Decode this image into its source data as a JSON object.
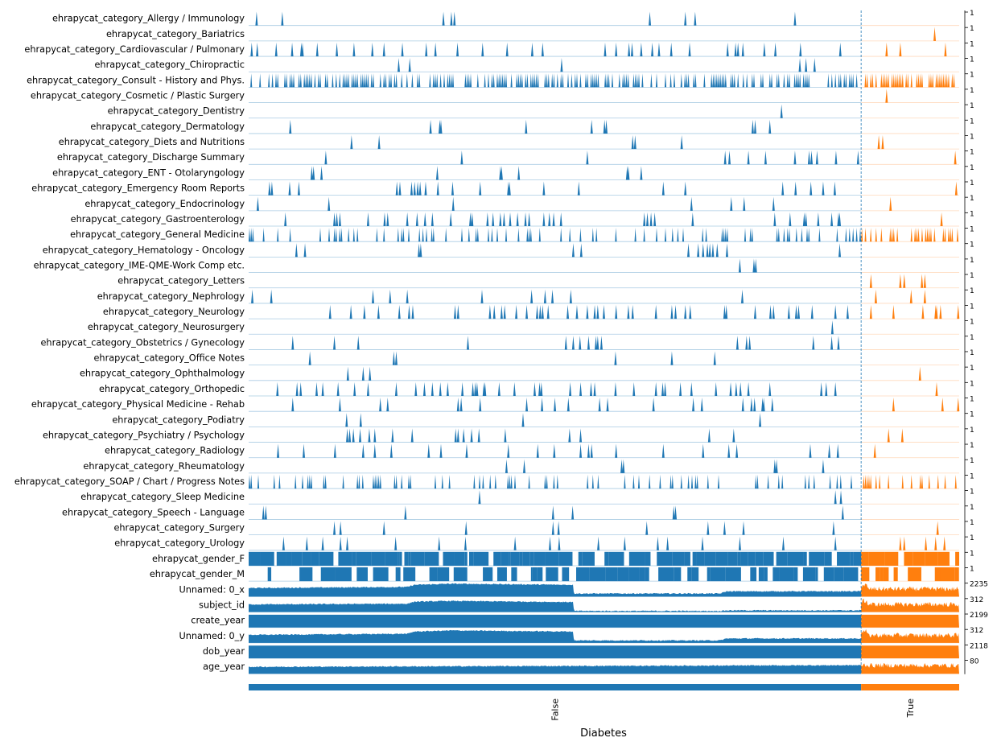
{
  "chart_data": {
    "type": "area",
    "title": "",
    "xlabel": "Diabetes",
    "ylabel": "",
    "groups": [
      {
        "name": "False",
        "color": "#1f77b4"
      },
      {
        "name": "True",
        "color": "#ff7f0e"
      }
    ],
    "group_split_fraction": 0.862,
    "tracks": [
      {
        "name": "ehrapycat_category_Allergy / Immunology",
        "max": "1",
        "kind": "spikes",
        "false_spikes": [
          0.013,
          0.055,
          0.318,
          0.331,
          0.336,
          0.655,
          0.713,
          0.729,
          0.892
        ],
        "true_spikes": []
      },
      {
        "name": "ehrapycat_category_Bariatrics",
        "max": "1",
        "kind": "spikes",
        "false_spikes": [],
        "true_spikes": [
          0.75
        ]
      },
      {
        "name": "ehrapycat_category_Cardiovascular / Pulmonary",
        "max": "1",
        "kind": "spikes",
        "false_spikes": [
          0.005,
          0.014,
          0.045,
          0.071,
          0.086,
          0.088,
          0.112,
          0.144,
          0.172,
          0.202,
          0.221,
          0.251,
          0.29,
          0.305,
          0.341,
          0.382,
          0.422,
          0.463,
          0.48,
          0.582,
          0.6,
          0.621,
          0.626,
          0.641,
          0.659,
          0.67,
          0.69,
          0.72,
          0.782,
          0.795,
          0.799,
          0.807,
          0.842,
          0.86,
          0.901,
          0.966
        ],
        "true_spikes": [
          0.26,
          0.4,
          0.86
        ]
      },
      {
        "name": "ehrapycat_category_Chiropractic",
        "max": "1",
        "kind": "spikes",
        "false_spikes": [
          0.245,
          0.263,
          0.511,
          0.9,
          0.91,
          0.924
        ],
        "true_spikes": []
      },
      {
        "name": "ehrapycat_category_Consult - History and Phys.",
        "max": "1",
        "kind": "dense",
        "false_density": 0.55,
        "true_density": 0.6
      },
      {
        "name": "ehrapycat_category_Cosmetic / Plastic Surgery",
        "max": "1",
        "kind": "spikes",
        "false_spikes": [],
        "true_spikes": [
          0.26
        ]
      },
      {
        "name": "ehrapycat_category_Dentistry",
        "max": "1",
        "kind": "spikes",
        "false_spikes": [
          0.87
        ],
        "true_spikes": []
      },
      {
        "name": "ehrapycat_category_Dermatology",
        "max": "1",
        "kind": "spikes",
        "false_spikes": [
          0.068,
          0.297,
          0.312,
          0.314,
          0.453,
          0.56,
          0.581,
          0.584,
          0.823,
          0.827,
          0.851
        ],
        "true_spikes": []
      },
      {
        "name": "ehrapycat_category_Diets and Nutritions",
        "max": "1",
        "kind": "spikes",
        "false_spikes": [
          0.168,
          0.213,
          0.627,
          0.631,
          0.707
        ],
        "true_spikes": [
          0.18,
          0.22
        ]
      },
      {
        "name": "ehrapycat_category_Discharge Summary",
        "max": "1",
        "kind": "spikes",
        "false_spikes": [
          0.126,
          0.348,
          0.553,
          0.778,
          0.785,
          0.816,
          0.844,
          0.892,
          0.915,
          0.919,
          0.928,
          0.959,
          0.995
        ],
        "true_spikes": [
          0.96
        ]
      },
      {
        "name": "ehrapycat_category_ENT - Otolaryngology",
        "max": "1",
        "kind": "spikes",
        "false_spikes": [
          0.103,
          0.106,
          0.119,
          0.308,
          0.411,
          0.413,
          0.441,
          0.618,
          0.62,
          0.641
        ],
        "true_spikes": []
      },
      {
        "name": "ehrapycat_category_Emergency Room Reports",
        "max": "1",
        "kind": "spikes",
        "false_spikes": [
          0.034,
          0.038,
          0.067,
          0.082,
          0.242,
          0.247,
          0.266,
          0.271,
          0.276,
          0.28,
          0.289,
          0.309,
          0.333,
          0.378,
          0.424,
          0.426,
          0.482,
          0.539,
          0.677,
          0.713,
          0.872,
          0.893,
          0.918,
          0.938,
          0.957
        ],
        "true_spikes": [
          0.97
        ]
      },
      {
        "name": "ehrapycat_category_Endocrinology",
        "max": "1",
        "kind": "spikes",
        "false_spikes": [
          0.015,
          0.131,
          0.334,
          0.723,
          0.788,
          0.809,
          0.857
        ],
        "true_spikes": [
          0.3
        ]
      },
      {
        "name": "ehrapycat_category_Gastroenterology",
        "max": "1",
        "kind": "spikes",
        "false_spikes": [
          0.06,
          0.14,
          0.144,
          0.149,
          0.195,
          0.222,
          0.227,
          0.259,
          0.275,
          0.288,
          0.3,
          0.33,
          0.362,
          0.365,
          0.39,
          0.399,
          0.411,
          0.417,
          0.427,
          0.439,
          0.452,
          0.458,
          0.482,
          0.491,
          0.498,
          0.51,
          0.646,
          0.651,
          0.657,
          0.663,
          0.725,
          0.859,
          0.884,
          0.907,
          0.91,
          0.93,
          0.952,
          0.963,
          0.965
        ],
        "true_spikes": [
          0.82
        ]
      },
      {
        "name": "ehrapycat_category_General Medicine",
        "max": "1",
        "kind": "dense",
        "false_density": 0.24,
        "true_density": 0.45
      },
      {
        "name": "ehrapycat_category_Hematology - Oncology",
        "max": "1",
        "kind": "spikes",
        "false_spikes": [
          0.078,
          0.092,
          0.278,
          0.281,
          0.53,
          0.543,
          0.718,
          0.734,
          0.742,
          0.749,
          0.753,
          0.758,
          0.765,
          0.781,
          0.965
        ],
        "true_spikes": []
      },
      {
        "name": "ehrapycat_category_IME-QME-Work Comp etc.",
        "max": "1",
        "kind": "spikes",
        "false_spikes": [
          0.802,
          0.825,
          0.828
        ],
        "true_spikes": []
      },
      {
        "name": "ehrapycat_category_Letters",
        "max": "1",
        "kind": "spikes",
        "false_spikes": [],
        "true_spikes": [
          0.1,
          0.4,
          0.44,
          0.62,
          0.65
        ]
      },
      {
        "name": "ehrapycat_category_Nephrology",
        "max": "1",
        "kind": "spikes",
        "false_spikes": [
          0.006,
          0.037,
          0.203,
          0.231,
          0.259,
          0.381,
          0.462,
          0.484,
          0.496,
          0.526,
          0.806
        ],
        "true_spikes": [
          0.15,
          0.51,
          0.65
        ]
      },
      {
        "name": "ehrapycat_category_Neurology",
        "max": "1",
        "kind": "spikes",
        "false_spikes": [
          0.133,
          0.167,
          0.189,
          0.212,
          0.246,
          0.262,
          0.268,
          0.337,
          0.342,
          0.394,
          0.401,
          0.413,
          0.418,
          0.437,
          0.454,
          0.471,
          0.476,
          0.48,
          0.489,
          0.521,
          0.536,
          0.553,
          0.565,
          0.57,
          0.58,
          0.6,
          0.62,
          0.627,
          0.665,
          0.691,
          0.697,
          0.713,
          0.721,
          0.777,
          0.78,
          0.827,
          0.852,
          0.857,
          0.882,
          0.894,
          0.898,
          0.92,
          0.958,
          0.978
        ],
        "true_spikes": [
          0.1,
          0.33,
          0.63,
          0.76,
          0.77,
          0.81,
          0.99
        ]
      },
      {
        "name": "ehrapycat_category_Neurosurgery",
        "max": "1",
        "kind": "spikes",
        "false_spikes": [
          0.953
        ],
        "true_spikes": []
      },
      {
        "name": "ehrapycat_category_Obstetrics / Gynecology",
        "max": "1",
        "kind": "spikes",
        "false_spikes": [
          0.072,
          0.14,
          0.179,
          0.358,
          0.518,
          0.53,
          0.541,
          0.555,
          0.567,
          0.57,
          0.576,
          0.798,
          0.813,
          0.818,
          0.922,
          0.952,
          0.963
        ],
        "true_spikes": []
      },
      {
        "name": "ehrapycat_category_Office Notes",
        "max": "1",
        "kind": "spikes",
        "false_spikes": [
          0.1,
          0.237,
          0.241,
          0.599,
          0.691,
          0.761
        ],
        "true_spikes": []
      },
      {
        "name": "ehrapycat_category_Ophthalmology",
        "max": "1",
        "kind": "spikes",
        "false_spikes": [
          0.162,
          0.187,
          0.198
        ],
        "true_spikes": [
          0.6
        ]
      },
      {
        "name": "ehrapycat_category_Orthopedic",
        "max": "1",
        "kind": "spikes",
        "false_spikes": [
          0.047,
          0.079,
          0.085,
          0.111,
          0.121,
          0.146,
          0.173,
          0.195,
          0.241,
          0.273,
          0.287,
          0.3,
          0.313,
          0.325,
          0.349,
          0.366,
          0.37,
          0.373,
          0.384,
          0.386,
          0.409,
          0.434,
          0.467,
          0.475,
          0.478,
          0.525,
          0.542,
          0.559,
          0.565,
          0.599,
          0.629,
          0.665,
          0.676,
          0.68,
          0.705,
          0.723,
          0.763,
          0.787,
          0.796,
          0.803,
          0.816,
          0.851,
          0.935,
          0.943,
          0.958
        ],
        "true_spikes": [
          0.77
        ]
      },
      {
        "name": "ehrapycat_category_Physical Medicine - Rehab",
        "max": "1",
        "kind": "spikes",
        "false_spikes": [
          0.072,
          0.149,
          0.215,
          0.227,
          0.342,
          0.347,
          0.378,
          0.454,
          0.479,
          0.5,
          0.522,
          0.573,
          0.586,
          0.661,
          0.726,
          0.74,
          0.807,
          0.821,
          0.826,
          0.839,
          0.841,
          0.855
        ],
        "true_spikes": [
          0.33,
          0.83,
          0.99
        ]
      },
      {
        "name": "ehrapycat_category_Podiatry",
        "max": "1",
        "kind": "spikes",
        "false_spikes": [
          0.16,
          0.183,
          0.448,
          0.835
        ],
        "true_spikes": []
      },
      {
        "name": "ehrapycat_category_Psychiatry / Psychology",
        "max": "1",
        "kind": "spikes",
        "false_spikes": [
          0.161,
          0.165,
          0.171,
          0.182,
          0.197,
          0.206,
          0.235,
          0.267,
          0.338,
          0.342,
          0.351,
          0.364,
          0.376,
          0.419,
          0.524,
          0.542,
          0.752,
          0.792
        ],
        "true_spikes": [
          0.28,
          0.42
        ]
      },
      {
        "name": "ehrapycat_category_Radiology",
        "max": "1",
        "kind": "spikes",
        "false_spikes": [
          0.048,
          0.09,
          0.141,
          0.187,
          0.206,
          0.233,
          0.294,
          0.314,
          0.356,
          0.424,
          0.472,
          0.499,
          0.542,
          0.555,
          0.56,
          0.6,
          0.677,
          0.742,
          0.784,
          0.797,
          0.917,
          0.948,
          0.962
        ],
        "true_spikes": [
          0.14
        ]
      },
      {
        "name": "ehrapycat_category_Rheumatology",
        "max": "1",
        "kind": "spikes",
        "false_spikes": [
          0.421,
          0.45,
          0.609,
          0.612,
          0.859,
          0.862,
          0.938
        ],
        "true_spikes": []
      },
      {
        "name": "ehrapycat_category_SOAP / Chart / Progress Notes",
        "max": "1",
        "kind": "dense",
        "false_density": 0.22,
        "true_density": 0.2
      },
      {
        "name": "ehrapycat_category_Sleep Medicine",
        "max": "1",
        "kind": "spikes",
        "false_spikes": [
          0.377,
          0.958,
          0.967
        ],
        "true_spikes": []
      },
      {
        "name": "ehrapycat_category_Speech - Language",
        "max": "1",
        "kind": "spikes",
        "false_spikes": [
          0.024,
          0.028,
          0.256,
          0.497,
          0.529,
          0.694,
          0.697,
          0.97
        ],
        "true_spikes": []
      },
      {
        "name": "ehrapycat_category_Surgery",
        "max": "1",
        "kind": "spikes",
        "false_spikes": [
          0.14,
          0.15,
          0.221,
          0.355,
          0.497,
          0.506,
          0.65,
          0.75,
          0.777,
          0.808,
          0.955
        ],
        "true_spikes": [
          0.78
        ]
      },
      {
        "name": "ehrapycat_category_Urology",
        "max": "1",
        "kind": "spikes",
        "false_spikes": [
          0.057,
          0.095,
          0.121,
          0.15,
          0.161,
          0.24,
          0.311,
          0.354,
          0.435,
          0.492,
          0.507,
          0.571,
          0.614,
          0.668,
          0.684,
          0.741,
          0.802,
          0.873,
          0.958
        ],
        "true_spikes": [
          0.4,
          0.44,
          0.66,
          0.76,
          0.85
        ]
      },
      {
        "name": "ehrapycat_gender_F",
        "max": "1",
        "kind": "binary",
        "false_density": 0.78,
        "true_density": 0.58
      },
      {
        "name": "ehrapycat_gender_M",
        "max": "1",
        "kind": "binary",
        "false_density": 0.42,
        "true_density": 0.5
      },
      {
        "name": "Unnamed: 0_x",
        "max": "2235",
        "kind": "continuous",
        "false_profile": [
          [
            0,
            0.62
          ],
          [
            0.26,
            0.7
          ],
          [
            0.27,
            0.85
          ],
          [
            0.33,
            0.93
          ],
          [
            0.53,
            0.85
          ],
          [
            0.531,
            0.22
          ],
          [
            0.77,
            0.22
          ],
          [
            0.78,
            0.38
          ],
          [
            1,
            0.38
          ]
        ],
        "true_profile": [
          0.82,
          0.55
        ]
      },
      {
        "name": "subject_id",
        "max": "312",
        "kind": "continuous",
        "false_profile": [
          [
            0,
            0.55
          ],
          [
            0.26,
            0.6
          ],
          [
            0.27,
            0.75
          ],
          [
            0.33,
            0.8
          ],
          [
            0.53,
            0.72
          ],
          [
            0.531,
            0.08
          ],
          [
            0.77,
            0.08
          ],
          [
            0.78,
            0.12
          ],
          [
            1,
            0.12
          ]
        ],
        "true_profile": [
          0.8,
          0.55
        ]
      },
      {
        "name": "create_year",
        "max": "2199",
        "kind": "continuous",
        "false_profile": [
          [
            0,
            0.92
          ],
          [
            1,
            0.92
          ]
        ],
        "true_profile": [
          0.92,
          0.92
        ]
      },
      {
        "name": "Unnamed: 0_y",
        "max": "312",
        "kind": "continuous",
        "false_profile": [
          [
            0,
            0.58
          ],
          [
            0.26,
            0.66
          ],
          [
            0.27,
            0.82
          ],
          [
            0.33,
            0.9
          ],
          [
            0.53,
            0.82
          ],
          [
            0.531,
            0.18
          ],
          [
            0.77,
            0.18
          ],
          [
            0.78,
            0.32
          ],
          [
            1,
            0.32
          ]
        ],
        "true_profile": [
          0.82,
          0.55
        ]
      },
      {
        "name": "dob_year",
        "max": "2118",
        "kind": "continuous",
        "false_profile": [
          [
            0,
            0.92
          ],
          [
            1,
            0.92
          ]
        ],
        "true_profile": [
          0.92,
          0.92
        ]
      },
      {
        "name": "age_year",
        "max": "80",
        "kind": "continuous",
        "false_profile": [
          [
            0,
            0.5
          ],
          [
            1,
            0.62
          ]
        ],
        "true_profile": [
          0.65,
          0.6
        ]
      }
    ]
  }
}
